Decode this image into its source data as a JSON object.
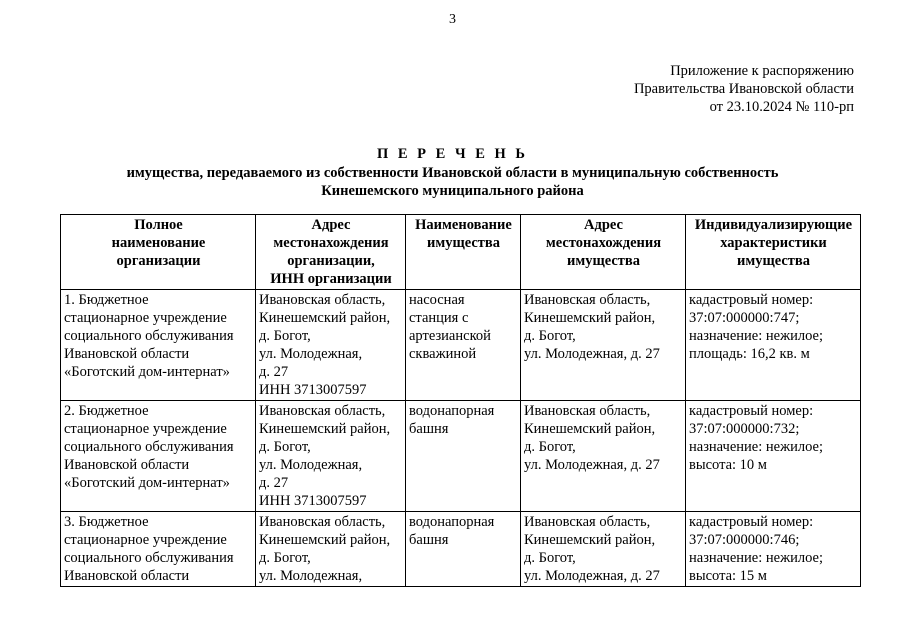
{
  "page_number": "3",
  "appendix": [
    "Приложение к распоряжению",
    "Правительства Ивановской области",
    "от 23.10.2024 № 110-рп"
  ],
  "title": "П Е Р Е Ч Е Н Ь",
  "subtitle": [
    "имущества, передаваемого из собственности Ивановской области в муниципальную собственность",
    "Кинешемского муниципального района"
  ],
  "table": {
    "headers": [
      "Полное\nнаименование\nорганизации",
      "Адрес\nместонахождения\nорганизации,\nИНН организации",
      "Наименование\nимущества",
      "Адрес\nместонахождения\nимущества",
      "Индивидуализирующие\nхарактеристики\nимущества"
    ],
    "rows": [
      [
        "1. Бюджетное\nстационарное учреждение\nсоциального обслуживания\nИвановской области\n«Боготский дом-интернат»",
        "Ивановская область,\nКинешемский район,\nд. Богот,\nул. Молодежная,\nд. 27\nИНН 3713007597",
        "насосная\nстанция с\nартезианской\nскважиной",
        "Ивановская область,\nКинешемский район,\nд. Богот,\nул. Молодежная, д. 27",
        "кадастровый номер:\n37:07:000000:747;\nназначение: нежилое;\nплощадь: 16,2 кв. м"
      ],
      [
        "2. Бюджетное\nстационарное учреждение\nсоциального обслуживания\nИвановской области\n«Боготский дом-интернат»",
        "Ивановская область,\nКинешемский район,\nд. Богот,\nул. Молодежная,\nд. 27\nИНН 3713007597",
        "водонапорная\nбашня",
        "Ивановская область,\nКинешемский район,\nд. Богот,\nул. Молодежная, д. 27",
        "кадастровый номер:\n37:07:000000:732;\nназначение: нежилое;\nвысота: 10 м"
      ],
      [
        "3. Бюджетное\nстационарное учреждение\nсоциального обслуживания\nИвановской области",
        "Ивановская область,\nКинешемский район,\nд. Богот,\nул. Молодежная,",
        "водонапорная\nбашня",
        "Ивановская область,\nКинешемский район,\nд. Богот,\nул. Молодежная, д. 27",
        "кадастровый номер:\n37:07:000000:746;\nназначение: нежилое;\nвысота: 15 м"
      ]
    ]
  }
}
